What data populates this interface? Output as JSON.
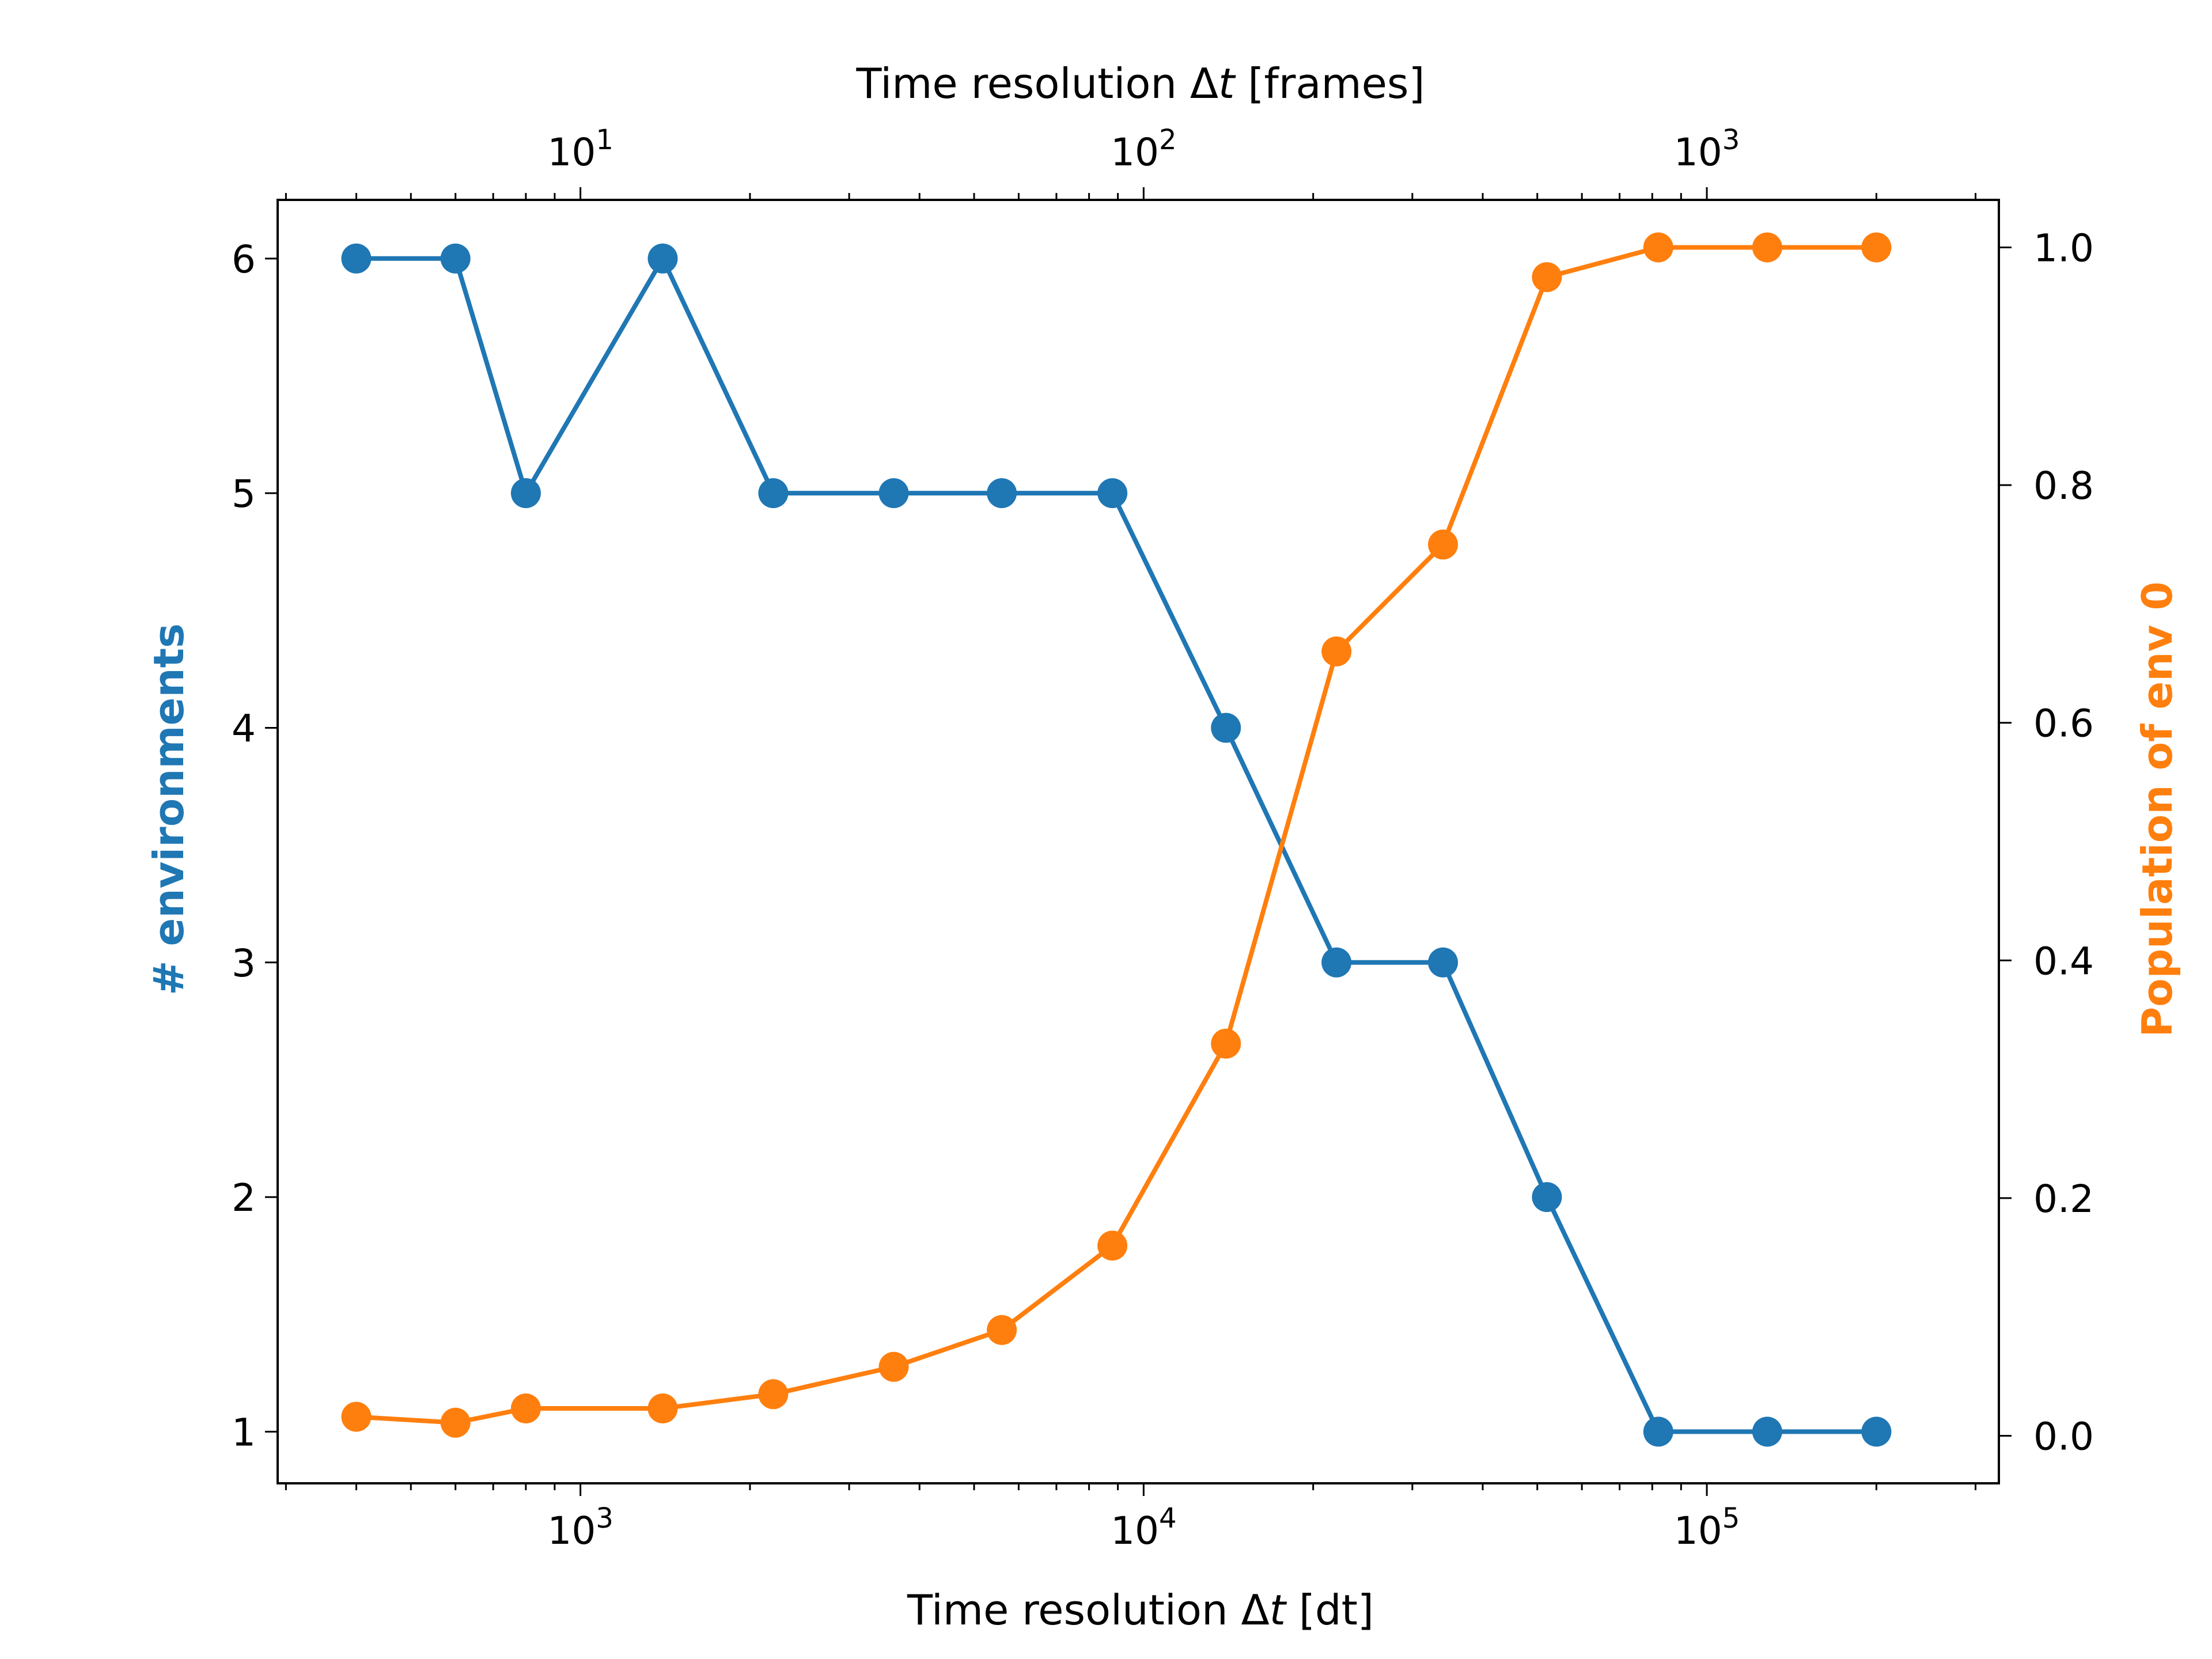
{
  "chart_data": {
    "type": "line",
    "x": [
      400,
      600,
      800,
      1400,
      2200,
      3600,
      5600,
      8800,
      14000,
      22000,
      34000,
      52000,
      82000,
      128000,
      200000
    ],
    "xscale": "log",
    "xlim": [
      290,
      330000
    ],
    "xlabel": {
      "pre": "Time resolution Δ",
      "italic": "t",
      "post": " [dt]"
    },
    "xticks": [
      {
        "base": "10",
        "exp": "3",
        "value": 1000
      },
      {
        "base": "10",
        "exp": "4",
        "value": 10000
      },
      {
        "base": "10",
        "exp": "5",
        "value": 100000
      }
    ],
    "top_axis": {
      "label": {
        "pre": "Time resolution Δ",
        "italic": "t",
        "post": " [frames]"
      },
      "scale": "log",
      "dt_per_frame": 100,
      "ticks": [
        {
          "base": "10",
          "exp": "1",
          "value": 10
        },
        {
          "base": "10",
          "exp": "2",
          "value": 100
        },
        {
          "base": "10",
          "exp": "3",
          "value": 1000
        }
      ]
    },
    "series": [
      {
        "axis": "left",
        "color": "#1f77b4",
        "values": [
          6,
          6,
          5,
          6,
          5,
          5,
          5,
          5,
          4,
          3,
          3,
          2,
          1,
          1,
          1
        ]
      },
      {
        "axis": "right",
        "color": "#ff7f0e",
        "values": [
          0.016,
          0.011,
          0.023,
          0.023,
          0.035,
          0.058,
          0.089,
          0.16,
          0.33,
          0.66,
          0.75,
          0.975,
          1.0,
          1.0,
          1.0
        ]
      }
    ],
    "left_axis": {
      "label": "# environments",
      "ylim": [
        0.78,
        6.25
      ],
      "ticks": [
        "1",
        "2",
        "3",
        "4",
        "5",
        "6"
      ],
      "color": "#1f77b4"
    },
    "right_axis": {
      "label": "Population of env 0",
      "ylim": [
        -0.04,
        1.04
      ],
      "ticks": [
        "0.0",
        "0.2",
        "0.4",
        "0.6",
        "0.8",
        "1.0"
      ],
      "color": "#ff7f0e"
    },
    "grid": false
  }
}
